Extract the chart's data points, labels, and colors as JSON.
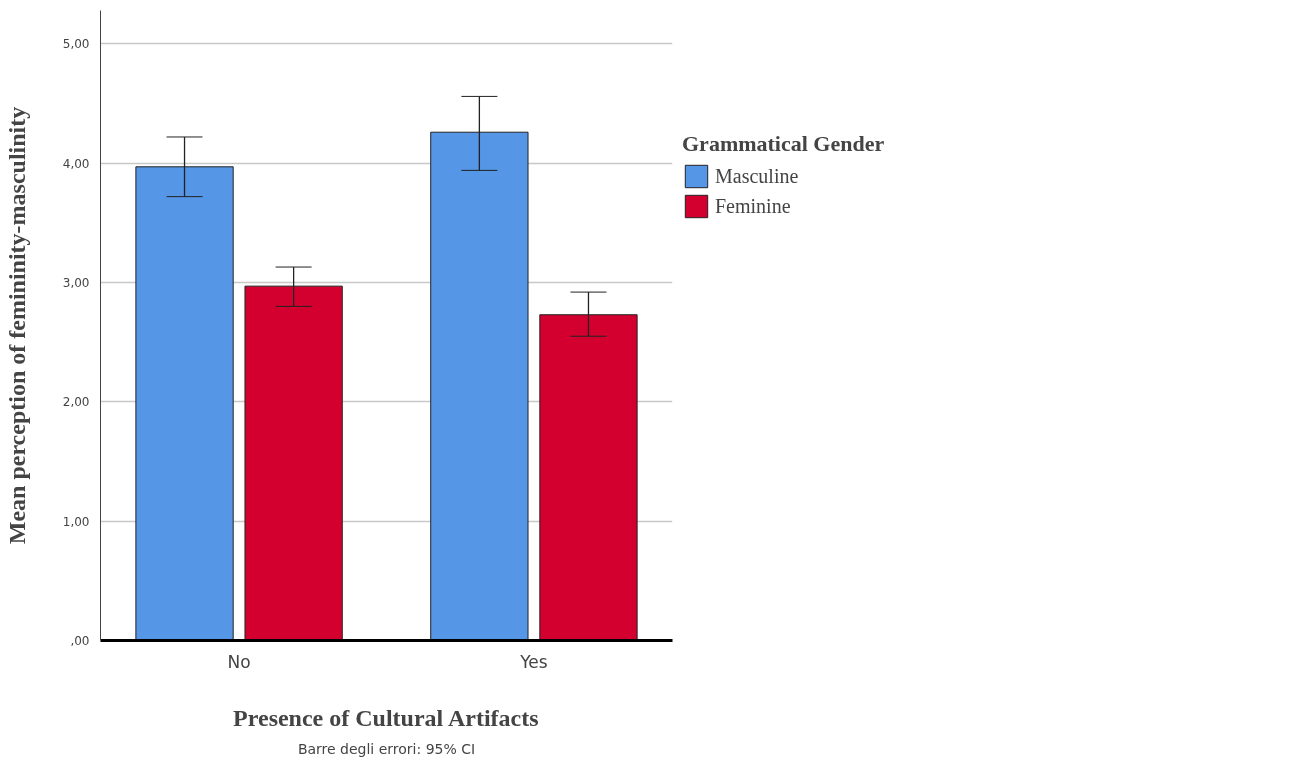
{
  "chart_data": {
    "type": "bar",
    "xlabel": "Presence of Cultural Artifacts",
    "ylabel": "Mean perception of femininity-masculinity",
    "legend_title": "Grammatical Gender",
    "categories": [
      "No",
      "Yes"
    ],
    "series": [
      {
        "name": "Masculine",
        "color": "#5596e6",
        "values": [
          3.97,
          4.26
        ],
        "errors": [
          [
            3.72,
            4.22
          ],
          [
            3.94,
            4.56
          ]
        ]
      },
      {
        "name": "Feminine",
        "color": "#d3002f",
        "values": [
          2.97,
          2.73
        ],
        "errors": [
          [
            2.8,
            3.13
          ],
          [
            2.55,
            2.92
          ]
        ]
      }
    ],
    "ylim": [
      0,
      5.28
    ],
    "yticks": [
      {
        "value": 0,
        "label": ",00"
      },
      {
        "value": 1,
        "label": "1,00"
      },
      {
        "value": 2,
        "label": "2,00"
      },
      {
        "value": 3,
        "label": "3,00"
      },
      {
        "value": 4,
        "label": "4,00"
      },
      {
        "value": 5,
        "label": "5,00"
      }
    ],
    "grid": "y",
    "legend": "right",
    "annotations": [
      "Barre degli errori: 95% CI"
    ]
  }
}
